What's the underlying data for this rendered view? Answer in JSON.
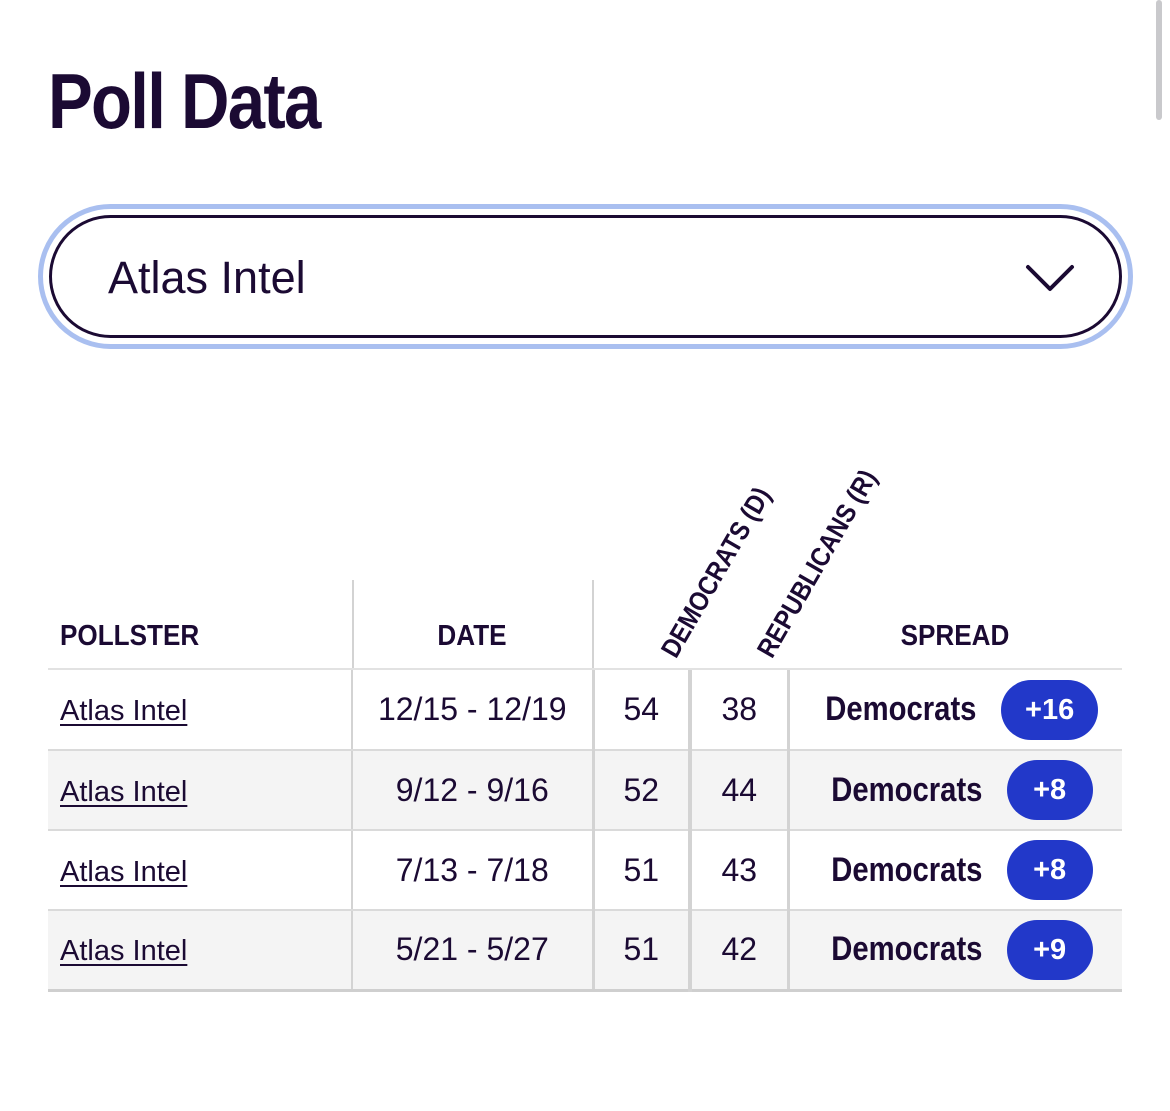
{
  "page": {
    "title": "Poll Data"
  },
  "selector": {
    "value": "Atlas Intel"
  },
  "table": {
    "headers": {
      "pollster": "POLLSTER",
      "date": "DATE",
      "democrats": "DEMOCRATS (D)",
      "republicans": "REPUBLICANS (R)",
      "spread": "SPREAD"
    },
    "rows": [
      {
        "pollster": "Atlas Intel",
        "date": "12/15 - 12/19",
        "dem": "54",
        "rep": "38",
        "spread_party": "Democrats",
        "spread_value": "+16"
      },
      {
        "pollster": "Atlas Intel",
        "date": "9/12 - 9/16",
        "dem": "52",
        "rep": "44",
        "spread_party": "Democrats",
        "spread_value": "+8"
      },
      {
        "pollster": "Atlas Intel",
        "date": "7/13 - 7/18",
        "dem": "51",
        "rep": "43",
        "spread_party": "Democrats",
        "spread_value": "+8"
      },
      {
        "pollster": "Atlas Intel",
        "date": "5/21 - 5/27",
        "dem": "51",
        "rep": "42",
        "spread_party": "Democrats",
        "spread_value": "+9"
      }
    ]
  },
  "colors": {
    "text": "#1b0a33",
    "accent": "#2238c9",
    "focus_ring": "#a9bff0"
  },
  "icons": {
    "dropdown": "chevron-down-icon"
  }
}
